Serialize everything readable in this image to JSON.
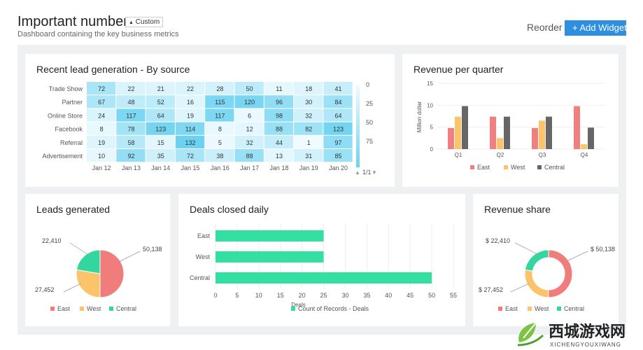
{
  "header": {
    "title": "Important numbers",
    "badge": "Custom",
    "subtitle": "Dashboard containing the key business metrics",
    "reorder": "Reorder",
    "add_widget": "+ Add Widget"
  },
  "watermark": {
    "main": "西城游戏网",
    "sub": "XICHENGYOUXIWANG"
  },
  "chart_data": [
    {
      "type": "heatmap",
      "title": "Recent lead generation - By source",
      "rows": [
        "Trade Show",
        "Partner",
        "Online Store",
        "Facebook",
        "Referral",
        "Advertisement"
      ],
      "columns": [
        "Jan 12",
        "Jan 13",
        "Jan 14",
        "Jan 15",
        "Jan 16",
        "Jan 17",
        "Jan 18",
        "Jan 19",
        "Jan 20"
      ],
      "values": [
        [
          72,
          22,
          21,
          22,
          28,
          50,
          11,
          18,
          41
        ],
        [
          67,
          48,
          52,
          16,
          115,
          120,
          96,
          30,
          84
        ],
        [
          24,
          117,
          64,
          19,
          117,
          6,
          98,
          32,
          64
        ],
        [
          8,
          78,
          123,
          114,
          8,
          12,
          88,
          82,
          123
        ],
        [
          19,
          58,
          15,
          132,
          5,
          32,
          44,
          1,
          97
        ],
        [
          10,
          92,
          35,
          72,
          38,
          88,
          13,
          31,
          85
        ]
      ],
      "scale_ticks": [
        "0",
        "25",
        "50",
        "75"
      ],
      "page_indicator": "1/1"
    },
    {
      "type": "bar",
      "title": "Revenue per quarter",
      "categories": [
        "Q1",
        "Q2",
        "Q3",
        "Q4"
      ],
      "series": [
        {
          "name": "East",
          "values": [
            4.8,
            7.4,
            4.8,
            9.8
          ],
          "color": "#f08080"
        },
        {
          "name": "West",
          "values": [
            7.4,
            2.5,
            6.5,
            1.1
          ],
          "color": "#fbc46a"
        },
        {
          "name": "Central",
          "values": [
            9.8,
            7.4,
            7.4,
            4.9
          ],
          "color": "#666666"
        }
      ],
      "ylabel": "Million dollar",
      "ylim": [
        0,
        15
      ],
      "yticks": [
        "0",
        "5",
        "10",
        "15"
      ]
    },
    {
      "type": "pie",
      "title": "Leads generated",
      "slices": [
        {
          "name": "East",
          "value": 50138,
          "label": "50,138",
          "color": "#f07c7c"
        },
        {
          "name": "West",
          "value": 27452,
          "label": "27,452",
          "color": "#fbc46a"
        },
        {
          "name": "Central",
          "value": 22410,
          "label": "22,410",
          "color": "#34d6a0"
        }
      ]
    },
    {
      "type": "bar",
      "orientation": "horizontal",
      "title": "Deals closed daily",
      "categories": [
        "East",
        "West",
        "Central"
      ],
      "series": [
        {
          "name": "Count of Records - Deals",
          "values": [
            25,
            25,
            50
          ],
          "color": "#34e0a1"
        }
      ],
      "xlabel": "Deals",
      "xlim": [
        0,
        55
      ],
      "xticks": [
        "0",
        "5",
        "10",
        "15",
        "20",
        "25",
        "30",
        "35",
        "40",
        "45",
        "50",
        "55"
      ]
    },
    {
      "type": "pie",
      "donut": true,
      "title": "Revenue share",
      "slices": [
        {
          "name": "East",
          "value": 50138,
          "label": "$ 50,138",
          "color": "#f07c7c"
        },
        {
          "name": "West",
          "value": 27452,
          "label": "$ 27,452",
          "color": "#fbc46a"
        },
        {
          "name": "Central",
          "value": 22410,
          "label": "$ 22,410",
          "color": "#34d6a0"
        }
      ]
    }
  ]
}
